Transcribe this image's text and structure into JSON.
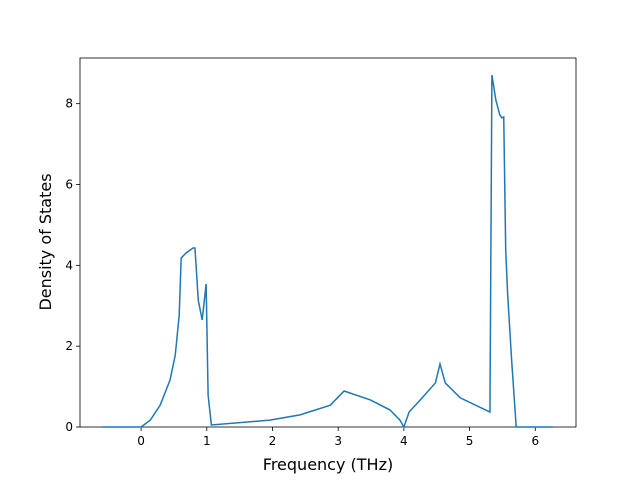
{
  "chart_data": {
    "type": "line",
    "xlabel": "Frequency (THz)",
    "ylabel": "Density of States",
    "x": [
      -0.59,
      0,
      0.14,
      0.29,
      0.44,
      0.52,
      0.58,
      0.61,
      0.68,
      0.79,
      0.82,
      0.87,
      0.93,
      0.99,
      1.02,
      1.07,
      1.96,
      2.42,
      2.88,
      3.03,
      3.09,
      3.49,
      3.79,
      3.94,
      4.0,
      4.08,
      4.25,
      4.48,
      4.55,
      4.63,
      4.86,
      5.31,
      5.34,
      5.4,
      5.46,
      5.49,
      5.52,
      5.55,
      5.58,
      5.64,
      5.71,
      6.27
    ],
    "series": [
      {
        "color": "#1f77b4",
        "values": [
          0,
          0,
          0.17,
          0.54,
          1.16,
          1.78,
          2.77,
          4.18,
          4.3,
          4.43,
          4.43,
          3.14,
          2.65,
          3.54,
          0.79,
          0.05,
          0.17,
          0.3,
          0.54,
          0.79,
          0.89,
          0.67,
          0.42,
          0.17,
          0,
          0.37,
          0.67,
          1.09,
          1.56,
          1.09,
          0.72,
          0.37,
          8.71,
          8.09,
          7.72,
          7.65,
          7.67,
          4.38,
          3.27,
          1.66,
          0,
          0
        ]
      }
    ],
    "xlim": [
      -0.93,
      6.62
    ],
    "xticks": [
      0,
      1,
      2,
      3,
      4,
      5,
      6
    ],
    "ylim": [
      0,
      9.13
    ],
    "yticks": [
      0,
      2,
      4,
      6,
      8
    ]
  }
}
